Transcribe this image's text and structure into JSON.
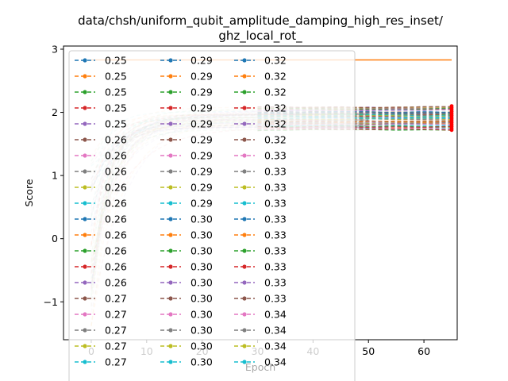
{
  "chart_data": {
    "type": "line",
    "title_line1": "data/chsh/uniform_qubit_amplitude_damping_high_res_inset/",
    "title_line2": "ghz_local_rot_",
    "xlabel": "Epoch",
    "ylabel": "Score",
    "xlim": [
      -5,
      66
    ],
    "ylim": [
      -1.6,
      3.05
    ],
    "xticks": [
      0,
      10,
      20,
      30,
      40,
      50,
      60
    ],
    "xtick_labels": [
      "0",
      "10",
      "20",
      "30",
      "40",
      "50",
      "60"
    ],
    "yticks": [
      -1,
      0,
      1,
      2,
      3
    ],
    "ytick_labels": [
      "−1",
      "0",
      "1",
      "2",
      "3"
    ],
    "grid": false,
    "legend_position": "upper-left",
    "legend_columns": 3,
    "reference_line": {
      "y": 2.83,
      "x": [
        0,
        65
      ],
      "color": "#ff7f0e"
    },
    "end_markers": {
      "x": 65,
      "y_range": [
        1.72,
        2.1
      ],
      "color": "#ff0000"
    },
    "series_colors": [
      "#1f77b4",
      "#ff7f0e",
      "#2ca02c",
      "#d62728",
      "#9467bd",
      "#8c564b",
      "#e377c2",
      "#7f7f7f",
      "#bcbd22",
      "#17becf"
    ],
    "series": [
      {
        "name": "0.25"
      },
      {
        "name": "0.25"
      },
      {
        "name": "0.25"
      },
      {
        "name": "0.25"
      },
      {
        "name": "0.25"
      },
      {
        "name": "0.26"
      },
      {
        "name": "0.26"
      },
      {
        "name": "0.26"
      },
      {
        "name": "0.26"
      },
      {
        "name": "0.26"
      },
      {
        "name": "0.26"
      },
      {
        "name": "0.26"
      },
      {
        "name": "0.26"
      },
      {
        "name": "0.26"
      },
      {
        "name": "0.26"
      },
      {
        "name": "0.27"
      },
      {
        "name": "0.27"
      },
      {
        "name": "0.27"
      },
      {
        "name": "0.27"
      },
      {
        "name": "0.27"
      },
      {
        "name": "0.29"
      },
      {
        "name": "0.29"
      },
      {
        "name": "0.29"
      },
      {
        "name": "0.29"
      },
      {
        "name": "0.29"
      },
      {
        "name": "0.29"
      },
      {
        "name": "0.29"
      },
      {
        "name": "0.29"
      },
      {
        "name": "0.29"
      },
      {
        "name": "0.29"
      },
      {
        "name": "0.30"
      },
      {
        "name": "0.30"
      },
      {
        "name": "0.30"
      },
      {
        "name": "0.30"
      },
      {
        "name": "0.30"
      },
      {
        "name": "0.30"
      },
      {
        "name": "0.30"
      },
      {
        "name": "0.30"
      },
      {
        "name": "0.30"
      },
      {
        "name": "0.30"
      },
      {
        "name": "0.32"
      },
      {
        "name": "0.32"
      },
      {
        "name": "0.32"
      },
      {
        "name": "0.32"
      },
      {
        "name": "0.32"
      },
      {
        "name": "0.32"
      },
      {
        "name": "0.33"
      },
      {
        "name": "0.33"
      },
      {
        "name": "0.33"
      },
      {
        "name": "0.33"
      },
      {
        "name": "0.33"
      },
      {
        "name": "0.33"
      },
      {
        "name": "0.33"
      },
      {
        "name": "0.33"
      },
      {
        "name": "0.33"
      },
      {
        "name": "0.33"
      },
      {
        "name": "0.34"
      },
      {
        "name": "0.34"
      },
      {
        "name": "0.34"
      },
      {
        "name": "0.34"
      }
    ]
  }
}
